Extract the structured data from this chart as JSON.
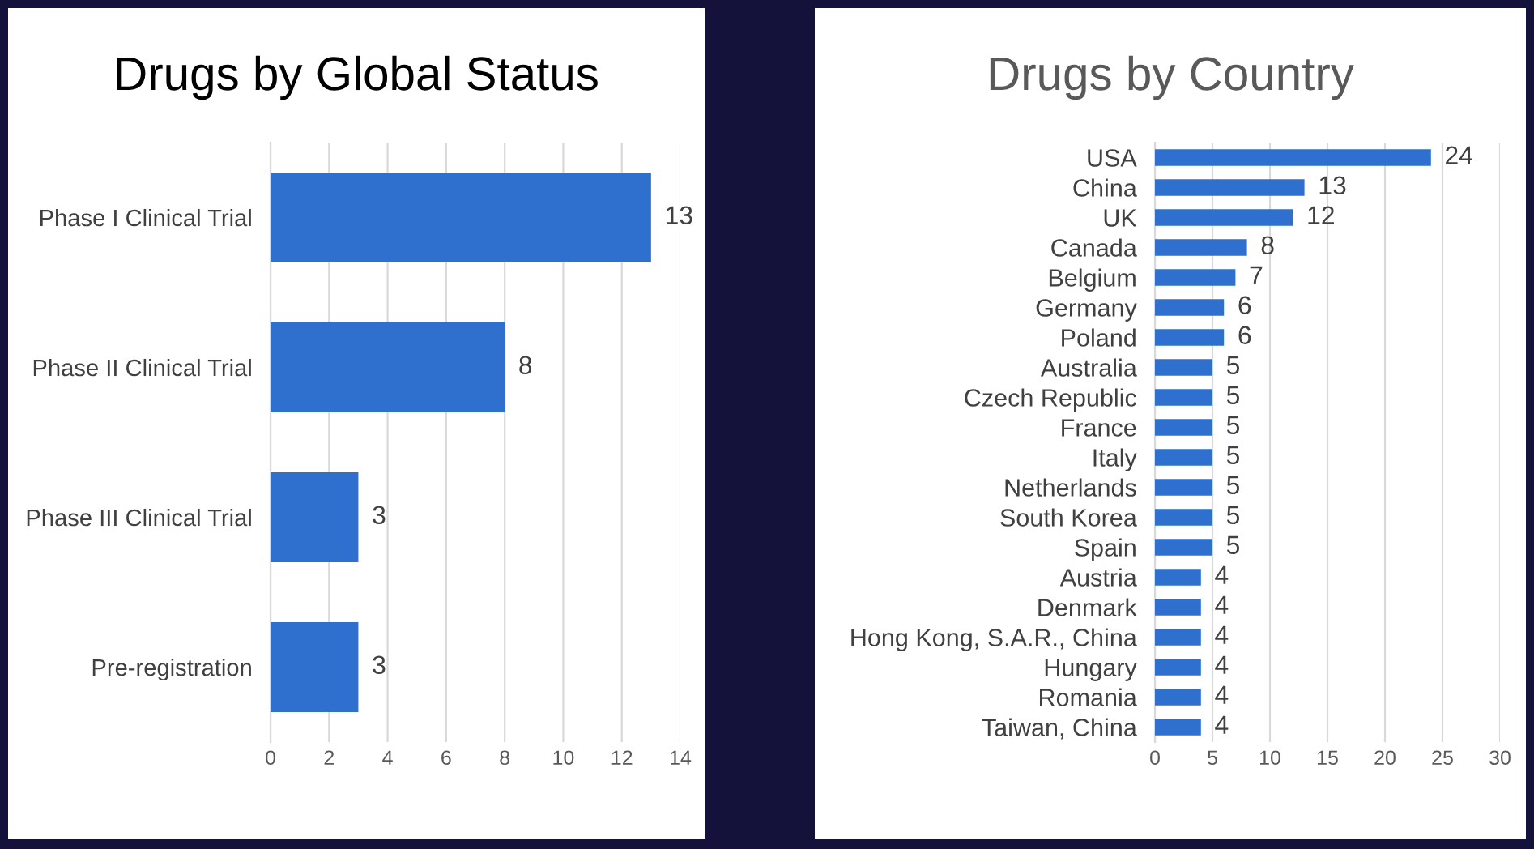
{
  "chart_data": [
    {
      "type": "bar",
      "orientation": "horizontal",
      "title": "Drugs by Global Status",
      "categories": [
        "Phase I Clinical Trial",
        "Phase II Clinical Trial",
        "Phase III Clinical Trial",
        "Pre-registration"
      ],
      "values": [
        13,
        8,
        3,
        3
      ],
      "color": "#2f6fce",
      "xlim": [
        0,
        14
      ],
      "xticks": [
        0,
        2,
        4,
        6,
        8,
        10,
        12,
        14
      ],
      "grid": "x",
      "data_labels": true
    },
    {
      "type": "bar",
      "orientation": "horizontal",
      "title": "Drugs by Country",
      "categories": [
        "USA",
        "China",
        "UK",
        "Canada",
        "Belgium",
        "Germany",
        "Poland",
        "Australia",
        "Czech Republic",
        "France",
        "Italy",
        "Netherlands",
        "South Korea",
        "Spain",
        "Austria",
        "Denmark",
        "Hong Kong, S.A.R., China",
        "Hungary",
        "Romania",
        "Taiwan, China"
      ],
      "values": [
        24,
        13,
        12,
        8,
        7,
        6,
        6,
        5,
        5,
        5,
        5,
        5,
        5,
        5,
        4,
        4,
        4,
        4,
        4,
        4
      ],
      "color": "#2f6fce",
      "xlim": [
        0,
        30
      ],
      "xticks": [
        0,
        5,
        10,
        15,
        20,
        25,
        30
      ],
      "grid": "x",
      "data_labels": true
    }
  ]
}
